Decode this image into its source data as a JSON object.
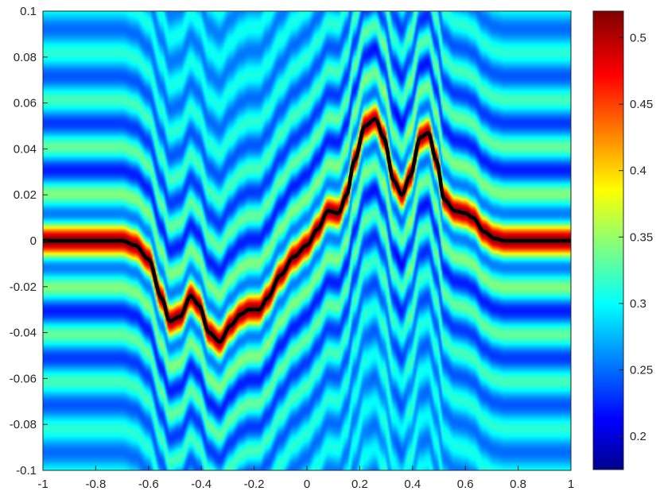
{
  "chart_data": {
    "type": "heatmap",
    "title": "",
    "xlabel": "",
    "ylabel": "",
    "xlim": [
      -1,
      1
    ],
    "ylim": [
      -0.1,
      0.1
    ],
    "x_ticks": [
      "-1",
      "-0.8",
      "-0.6",
      "-0.4",
      "-0.2",
      "0",
      "0.2",
      "0.4",
      "0.6",
      "0.8",
      "1"
    ],
    "y_ticks": [
      "-0.1",
      "-0.08",
      "-0.06",
      "-0.04",
      "-0.02",
      "0",
      "0.02",
      "0.04",
      "0.06",
      "0.08",
      "0.1"
    ],
    "colormap": "jet",
    "colorbar": {
      "range": [
        0.175,
        0.52
      ],
      "ticks": [
        "0.2",
        "0.25",
        "0.3",
        "0.35",
        "0.4",
        "0.45",
        "0.5"
      ]
    },
    "grid": false,
    "ridge_curve": {
      "color": "#000000",
      "x": [
        -1,
        -0.8,
        -0.7,
        -0.65,
        -0.6,
        -0.55,
        -0.52,
        -0.48,
        -0.44,
        -0.41,
        -0.37,
        -0.33,
        -0.29,
        -0.25,
        -0.22,
        -0.18,
        -0.15,
        -0.1,
        -0.05,
        0,
        0.04,
        0.08,
        0.12,
        0.15,
        0.18,
        0.22,
        0.26,
        0.29,
        0.33,
        0.36,
        0.39,
        0.43,
        0.46,
        0.49,
        0.52,
        0.56,
        0.6,
        0.63,
        0.67,
        0.71,
        0.75,
        0.8,
        1
      ],
      "y": [
        0,
        0,
        0,
        -0.002,
        -0.008,
        -0.025,
        -0.035,
        -0.033,
        -0.024,
        -0.028,
        -0.04,
        -0.044,
        -0.037,
        -0.032,
        -0.03,
        -0.03,
        -0.025,
        -0.015,
        -0.007,
        -0.002,
        0.005,
        0.013,
        0.012,
        0.02,
        0.035,
        0.05,
        0.053,
        0.045,
        0.026,
        0.02,
        0.028,
        0.045,
        0.047,
        0.035,
        0.018,
        0.013,
        0.012,
        0.01,
        0.004,
        0.001,
        0,
        0,
        0
      ]
    }
  }
}
